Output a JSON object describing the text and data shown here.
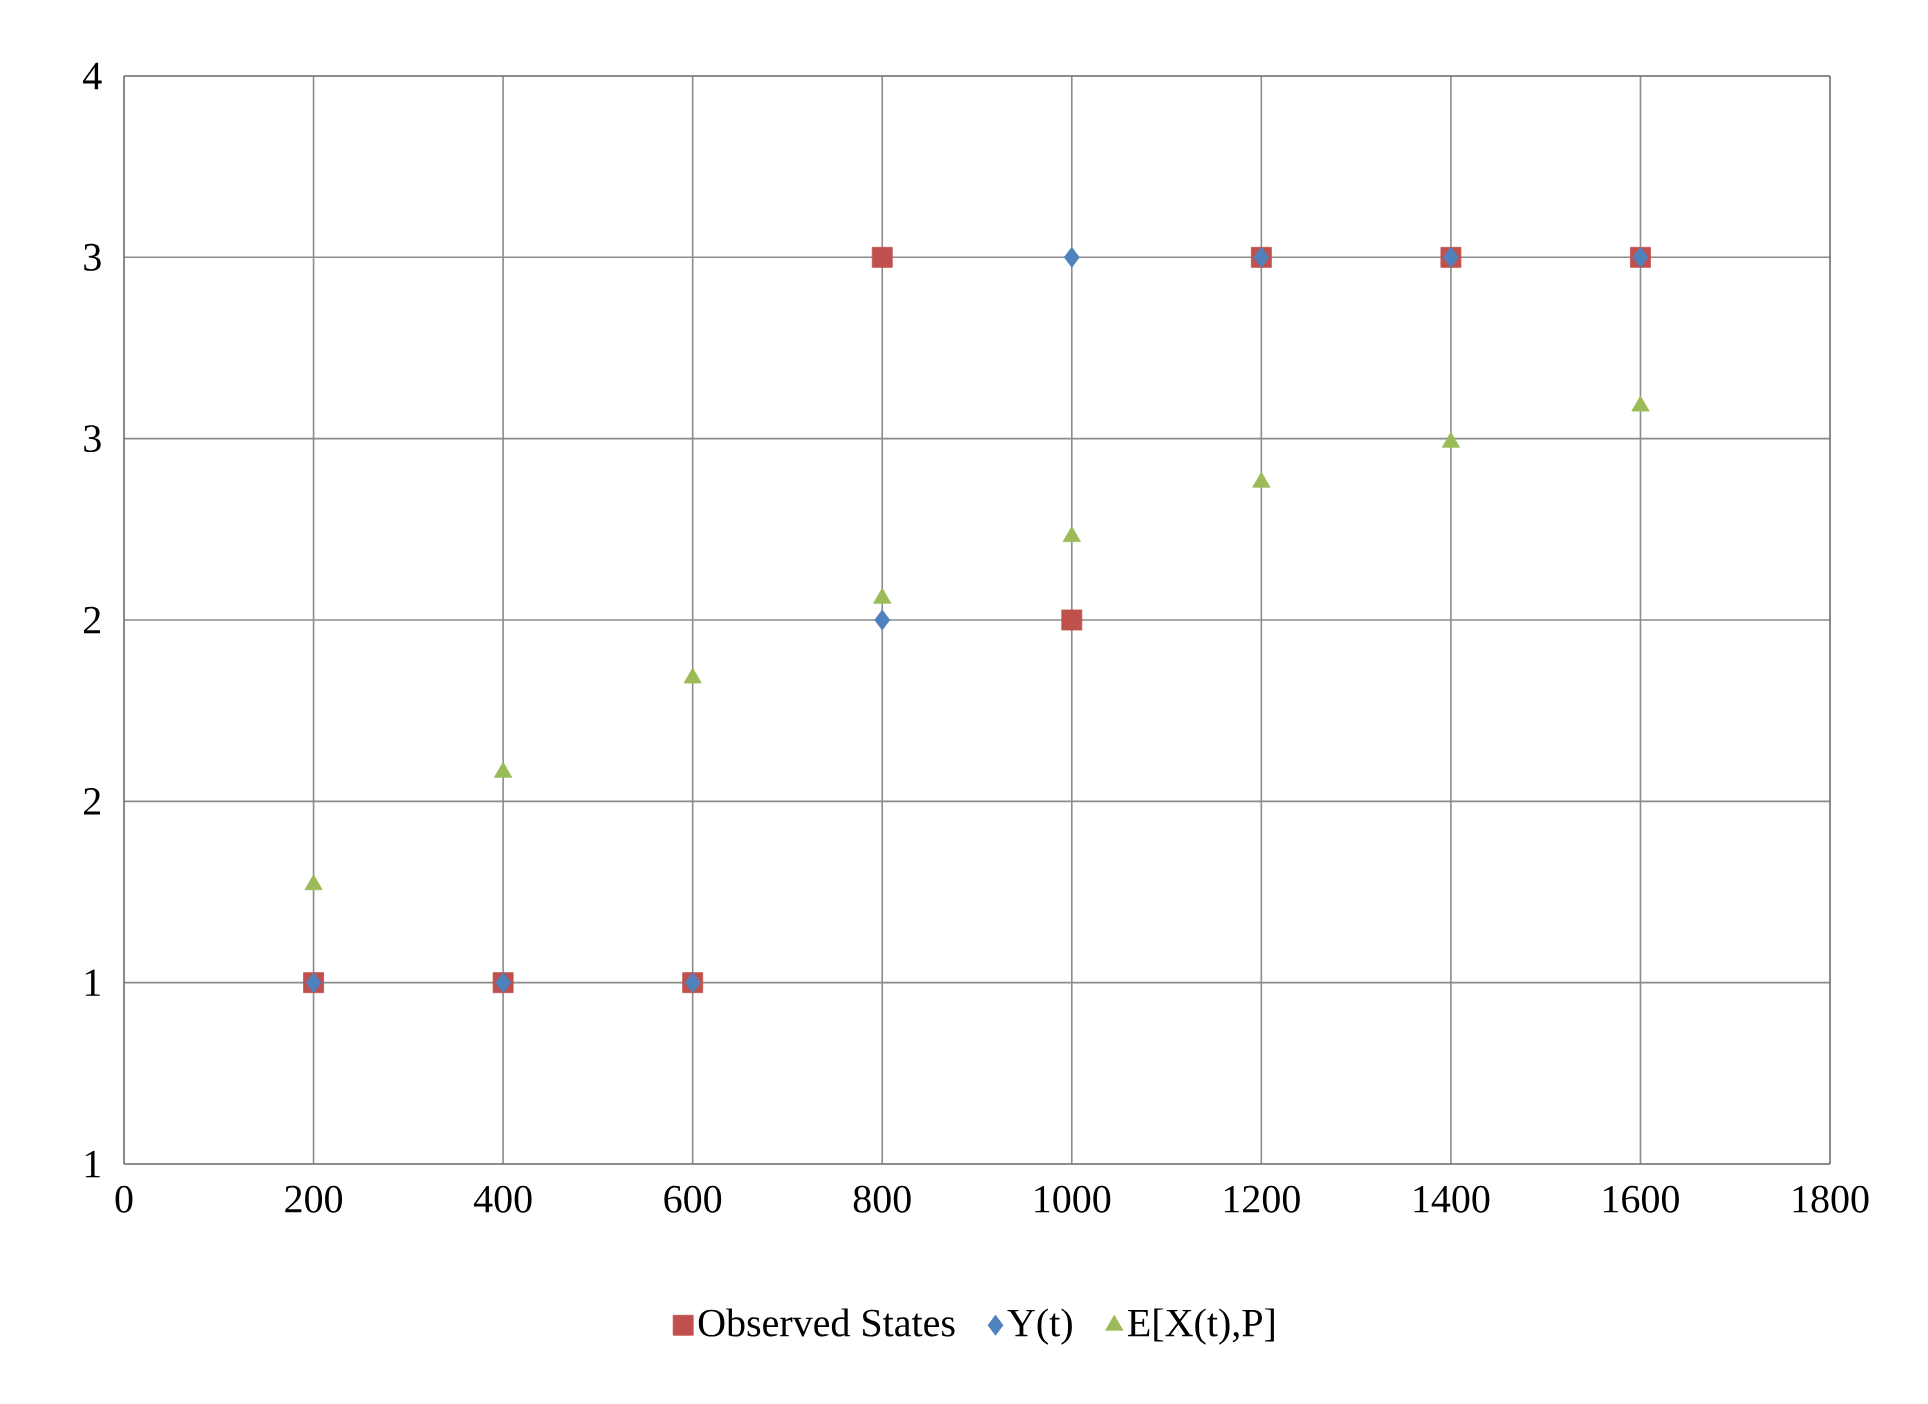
{
  "chart_data": {
    "type": "scatter",
    "x": [
      200,
      400,
      600,
      800,
      1000,
      1200,
      1400,
      1600
    ],
    "series": [
      {
        "name": "Observed States",
        "color": "#c0504d",
        "marker": "square",
        "values": [
          1,
          1,
          1,
          3,
          2,
          3,
          3,
          3
        ]
      },
      {
        "name": "Y(t)",
        "color": "#4f81bd",
        "marker": "diamond",
        "values": [
          1,
          1,
          1,
          2,
          3,
          3,
          3,
          3
        ]
      },
      {
        "name": "E[X(t),P]",
        "color": "#9bbb59",
        "marker": "triangle",
        "values": [
          1.27,
          1.58,
          1.84,
          2.06,
          2.23,
          2.38,
          2.49,
          2.59
        ]
      }
    ],
    "xlim": [
      0,
      1800
    ],
    "xticks": [
      0,
      200,
      400,
      600,
      800,
      1000,
      1200,
      1400,
      1600,
      1800
    ],
    "ylim": [
      0.5,
      3.5
    ],
    "yticks": [
      {
        "value": 0.5,
        "label": "1"
      },
      {
        "value": 1,
        "label": "1"
      },
      {
        "value": 1.5,
        "label": "2"
      },
      {
        "value": 2,
        "label": "2"
      },
      {
        "value": 2.5,
        "label": "3"
      },
      {
        "value": 3,
        "label": "3"
      },
      {
        "value": 3.5,
        "label": "4"
      }
    ],
    "grid": true,
    "legend": "bottom"
  }
}
